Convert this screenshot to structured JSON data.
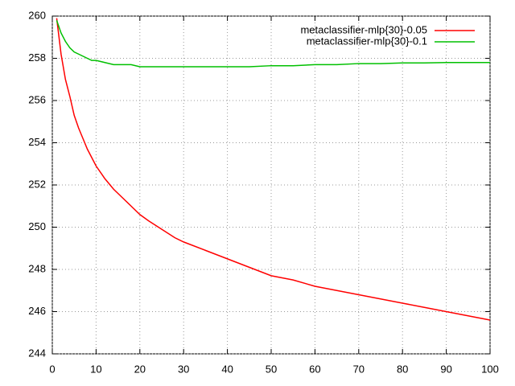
{
  "chart_data": {
    "type": "line",
    "x": [
      1,
      2,
      3,
      4,
      5,
      6,
      7,
      8,
      9,
      10,
      12,
      14,
      16,
      18,
      20,
      22,
      25,
      28,
      30,
      35,
      40,
      45,
      50,
      55,
      60,
      65,
      70,
      75,
      80,
      85,
      90,
      95,
      100
    ],
    "series": [
      {
        "name": "metaclassifier-mlp{30}-0.05",
        "color": "#ff0000",
        "values": [
          259.9,
          258.2,
          257.0,
          256.2,
          255.3,
          254.7,
          254.2,
          253.7,
          253.3,
          252.9,
          252.3,
          251.8,
          251.4,
          251.0,
          250.6,
          250.3,
          249.9,
          249.5,
          249.3,
          248.9,
          248.5,
          248.1,
          247.7,
          247.5,
          247.2,
          247.0,
          246.8,
          246.6,
          246.4,
          246.2,
          246.0,
          245.8,
          245.6
        ]
      },
      {
        "name": "metaclassifier-mlp{30}-0.1",
        "color": "#00c000",
        "values": [
          259.8,
          259.2,
          258.8,
          258.5,
          258.3,
          258.2,
          258.1,
          258.0,
          257.9,
          257.9,
          257.8,
          257.7,
          257.7,
          257.7,
          257.6,
          257.6,
          257.6,
          257.6,
          257.6,
          257.6,
          257.6,
          257.6,
          257.65,
          257.65,
          257.7,
          257.7,
          257.75,
          257.75,
          257.78,
          257.78,
          257.8,
          257.8,
          257.8
        ]
      }
    ],
    "xlim": [
      0,
      100
    ],
    "xticks": [
      0,
      10,
      20,
      30,
      40,
      50,
      60,
      70,
      80,
      90,
      100
    ],
    "ylim": [
      244,
      260
    ],
    "yticks": [
      244,
      246,
      248,
      250,
      252,
      254,
      256,
      258,
      260
    ],
    "grid": true,
    "legend": "top-right"
  }
}
